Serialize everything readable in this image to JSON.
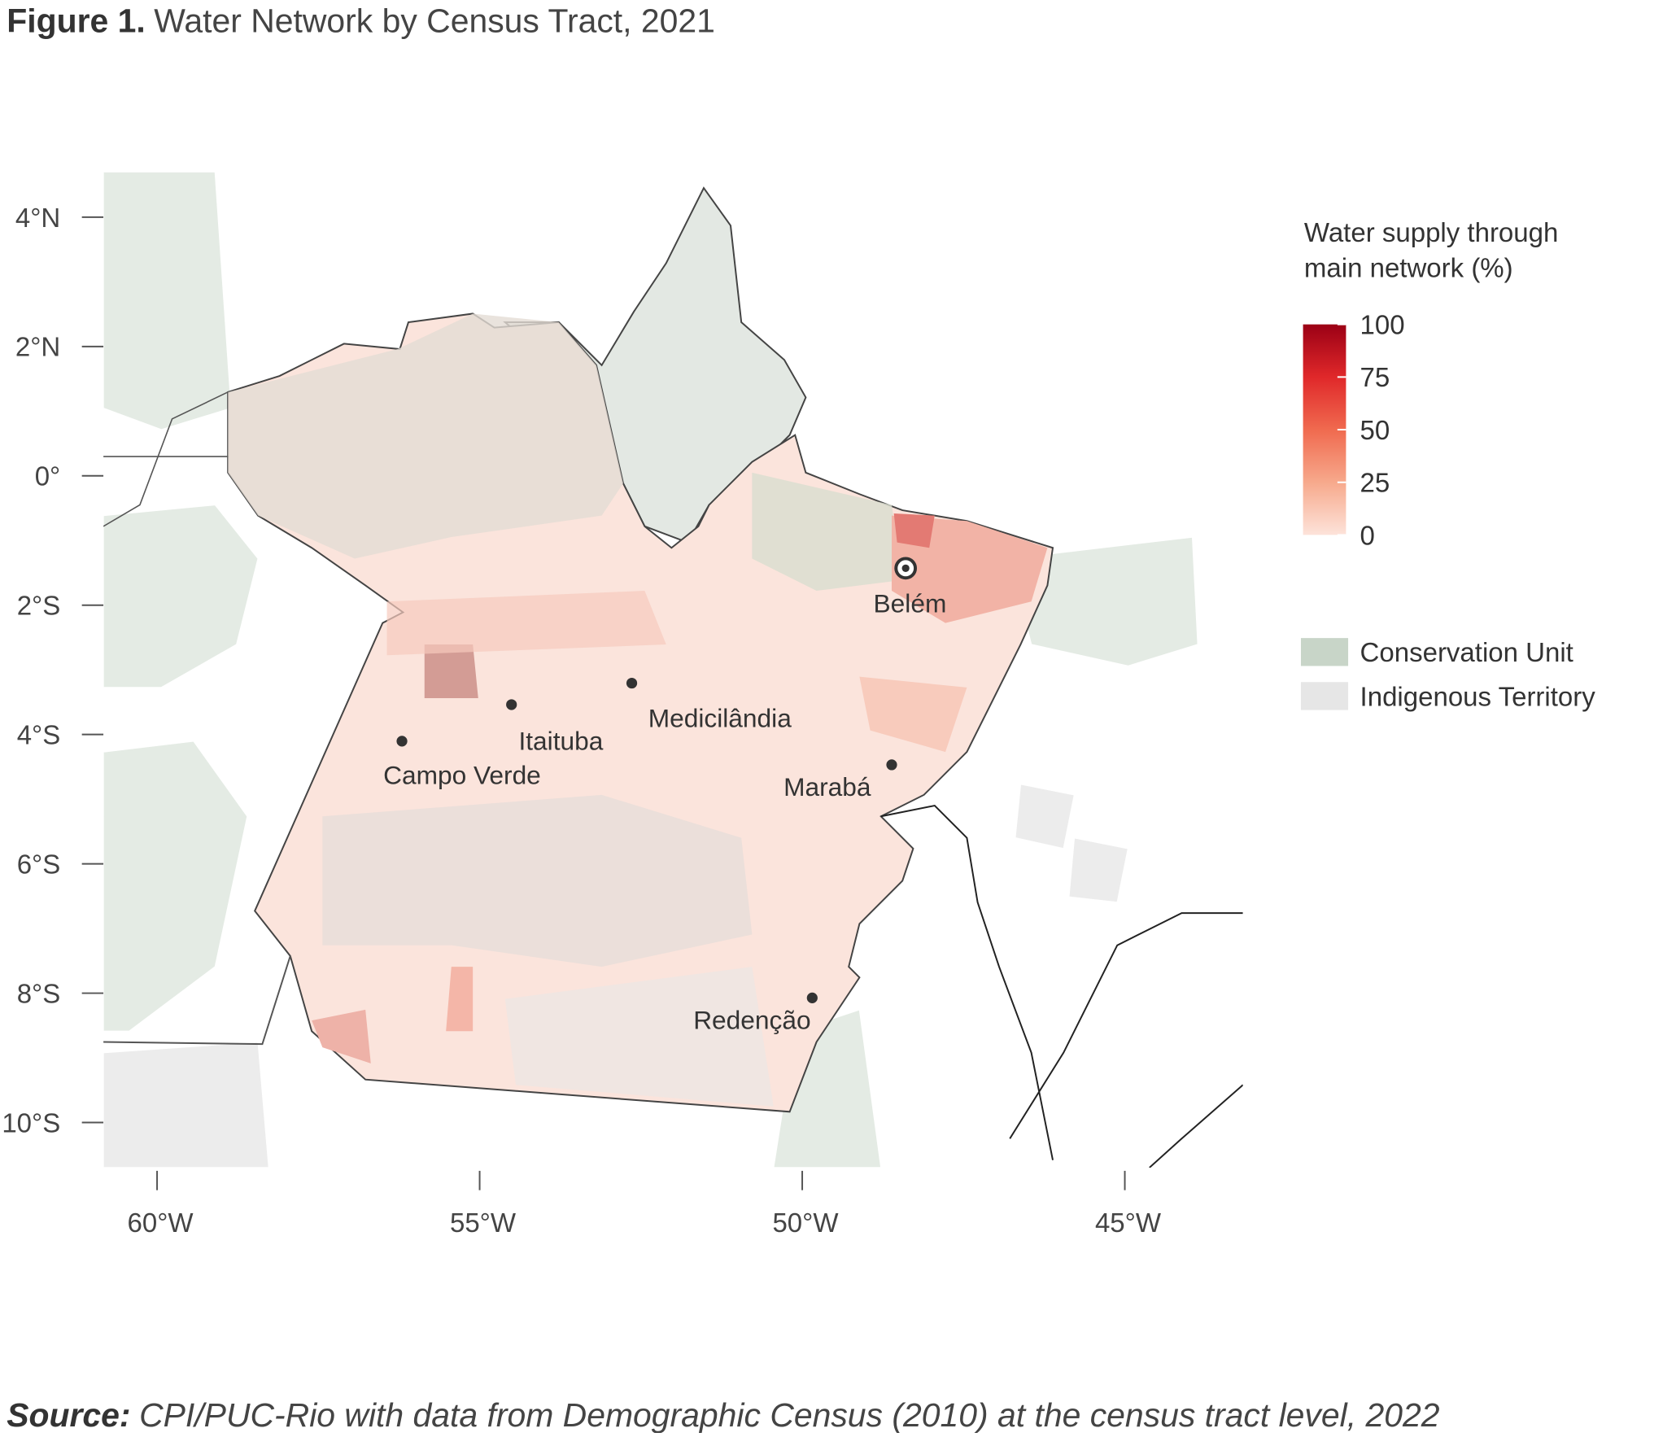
{
  "title": {
    "label": "Figure 1.",
    "text": "Water Network by Census Tract, 2021"
  },
  "map": {
    "lat_ticks": [
      {
        "value": 4,
        "label": "4°N"
      },
      {
        "value": 2,
        "label": "2°N"
      },
      {
        "value": 0,
        "label": "0°"
      },
      {
        "value": -2,
        "label": "2°S"
      },
      {
        "value": -4,
        "label": "4°S"
      },
      {
        "value": -6,
        "label": "6°S"
      },
      {
        "value": -8,
        "label": "8°S"
      },
      {
        "value": -10,
        "label": "10°S"
      }
    ],
    "lon_ticks": [
      {
        "value": -60,
        "label": "60°W"
      },
      {
        "value": -55,
        "label": "55°W"
      },
      {
        "value": -50,
        "label": "50°W"
      },
      {
        "value": -45,
        "label": "45°W"
      }
    ],
    "cities": [
      "Belém",
      "Medicilândia",
      "Itaituba",
      "Campo Verde",
      "Marabá",
      "Redenção"
    ]
  },
  "legend": {
    "title_lines": [
      "Water supply through",
      "main network (%)"
    ],
    "ticks": [
      0,
      25,
      50,
      75,
      100
    ],
    "colors": [
      "#fde3da",
      "#f7a98c",
      "#f06a4f",
      "#e0282a",
      "#9b0015"
    ],
    "categories": [
      {
        "name": "Conservation Unit",
        "color": "#c8d5c8"
      },
      {
        "name": "Indigenous Territory",
        "color": "#e6e6e6"
      }
    ]
  },
  "source": {
    "label": "Source:",
    "text": "CPI/PUC-Rio with data from Demographic Census (2010) at the census tract level, 2022"
  }
}
